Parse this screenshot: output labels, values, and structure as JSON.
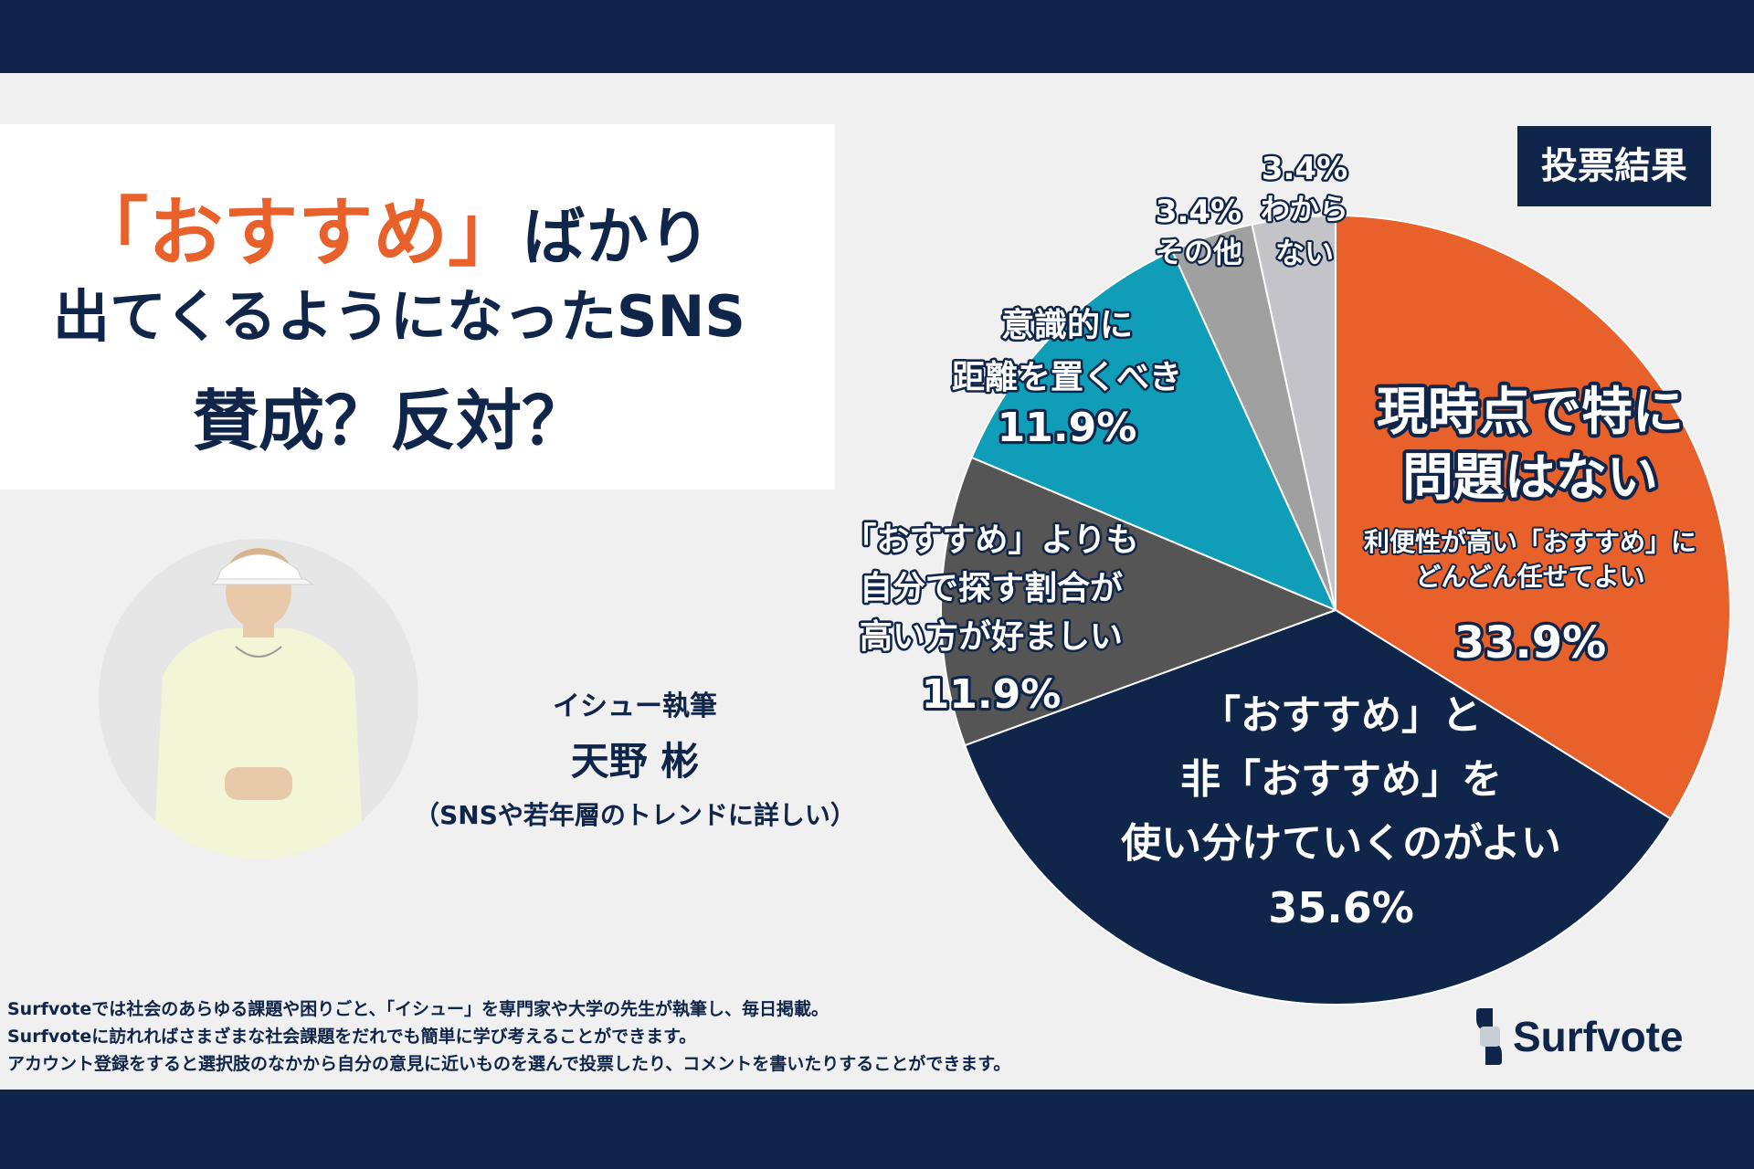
{
  "header": {
    "title_quote_open": "「",
    "title_accent": "おすすめ",
    "title_quote_close": "」",
    "title_line1_rest": "ばかり",
    "title_line2": "出てくるようになったSNS",
    "title_line3": "賛成？反対？"
  },
  "badge": "投票結果",
  "author": {
    "role": "イシュー執筆",
    "name": "天野 彬",
    "description": "（SNSや若年層のトレンドに詳しい）"
  },
  "footer": {
    "lines": [
      "Surfvoteでは社会のあらゆる課題や困りごと、「イシュー」を専門家や大学の先生が執筆し、毎日掲載。",
      "Surfvoteに訪れればさまざまな社会課題をだれでも簡単に学び考えることができます。",
      "アカウント登録をすると選択肢のなかから自分の意見に近いものを選んで投票したり、コメントを書いたりすることができます。"
    ]
  },
  "logo": {
    "text": "Surfvote"
  },
  "colors": {
    "navy": "#0f2549",
    "orange": "#e8602a",
    "dark_gray": "#555555",
    "teal": "#0f9db8",
    "mid_gray": "#a0a0a0",
    "light_gray": "#c4c4c8"
  },
  "chart_data": {
    "type": "pie",
    "title": "投票結果",
    "slices": [
      {
        "id": "no-problem",
        "label_lines": [
          "現時点で特に",
          "問題はない"
        ],
        "sub_lines": [
          "利便性が高い「おすすめ」に",
          "どんどん任せてよい"
        ],
        "value": 33.9,
        "value_text": "33.9%",
        "color": "#e8602a"
      },
      {
        "id": "use-both",
        "label_lines": [
          "「おすすめ」と",
          "非「おすすめ」を",
          "使い分けていくのがよい"
        ],
        "sub_lines": [],
        "value": 35.6,
        "value_text": "35.6%",
        "color": "#0f2549"
      },
      {
        "id": "search-yourself",
        "label_lines": [
          "「おすすめ」よりも",
          "自分で探す割合が",
          "高い方が好ましい"
        ],
        "sub_lines": [],
        "value": 11.9,
        "value_text": "11.9%",
        "color": "#555555"
      },
      {
        "id": "keep-distance",
        "label_lines": [
          "意識的に",
          "距離を置くべき"
        ],
        "sub_lines": [],
        "value": 11.9,
        "value_text": "11.9%",
        "color": "#0f9db8"
      },
      {
        "id": "other",
        "label_lines": [
          "その他"
        ],
        "sub_lines": [],
        "value": 3.4,
        "value_text": "3.4%",
        "color": "#a0a0a0"
      },
      {
        "id": "dont-know",
        "label_lines": [
          "わから",
          "ない"
        ],
        "sub_lines": [],
        "value": 3.4,
        "value_text": "3.4%",
        "color": "#c4c4c8"
      }
    ]
  }
}
